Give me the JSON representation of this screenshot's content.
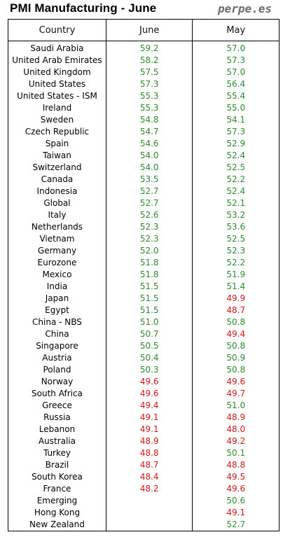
{
  "header": {
    "title": "PMI Manufacturing - June",
    "brand": "perpe.es"
  },
  "colors": {
    "above_50": "#2e8b2e",
    "below_50": "#d01818"
  },
  "chart_data": {
    "type": "table",
    "title": "PMI Manufacturing - June",
    "columns": [
      "Country",
      "June",
      "May"
    ],
    "rows": [
      [
        "Saudi Arabia",
        "59.2",
        "57.0"
      ],
      [
        "United Arab Emirates",
        "58.2",
        "57.3"
      ],
      [
        "United Kingdom",
        "57.5",
        "57.0"
      ],
      [
        "United States",
        "57.3",
        "56.4"
      ],
      [
        "United States - ISM",
        "55.3",
        "55.4"
      ],
      [
        "Ireland",
        "55.3",
        "55.0"
      ],
      [
        "Sweden",
        "54.8",
        "54.1"
      ],
      [
        "Czech Republic",
        "54.7",
        "57.3"
      ],
      [
        "Spain",
        "54.6",
        "52.9"
      ],
      [
        "Taiwan",
        "54.0",
        "52.4"
      ],
      [
        "Switzerland",
        "54.0",
        "52.5"
      ],
      [
        "Canada",
        "53.5",
        "52.2"
      ],
      [
        "Indonesia",
        "52.7",
        "52.4"
      ],
      [
        "Global",
        "52.7",
        "52.1"
      ],
      [
        "Italy",
        "52.6",
        "53.2"
      ],
      [
        "Netherlands",
        "52.3",
        "53.6"
      ],
      [
        "Vietnam",
        "52.3",
        "52.5"
      ],
      [
        "Germany",
        "52.0",
        "52.3"
      ],
      [
        "Eurozone",
        "51.8",
        "52.2"
      ],
      [
        "Mexico",
        "51.8",
        "51.9"
      ],
      [
        "India",
        "51.5",
        "51.4"
      ],
      [
        "Japan",
        "51.5",
        "49.9"
      ],
      [
        "Egypt",
        "51.5",
        "48.7"
      ],
      [
        "China - NBS",
        "51.0",
        "50.8"
      ],
      [
        "China",
        "50.7",
        "49.4"
      ],
      [
        "Singapore",
        "50.5",
        "50.8"
      ],
      [
        "Austria",
        "50.4",
        "50.9"
      ],
      [
        "Poland",
        "50.3",
        "50.8"
      ],
      [
        "Norway",
        "49.6",
        "49.6"
      ],
      [
        "South Africa",
        "49.6",
        "49.7"
      ],
      [
        "Greece",
        "49.4",
        "51.0"
      ],
      [
        "Russia",
        "49.1",
        "48.9"
      ],
      [
        "Lebanon",
        "49.1",
        "48.0"
      ],
      [
        "Australia",
        "48.9",
        "49.2"
      ],
      [
        "Turkey",
        "48.8",
        "50.1"
      ],
      [
        "Brazil",
        "48.7",
        "48.8"
      ],
      [
        "South Korea",
        "48.4",
        "49.5"
      ],
      [
        "France",
        "48.2",
        "49.6"
      ],
      [
        "Emerging",
        "",
        "50.6"
      ],
      [
        "Hong Kong",
        "",
        "49.1"
      ],
      [
        "New Zealand",
        "",
        "52.7"
      ]
    ]
  }
}
